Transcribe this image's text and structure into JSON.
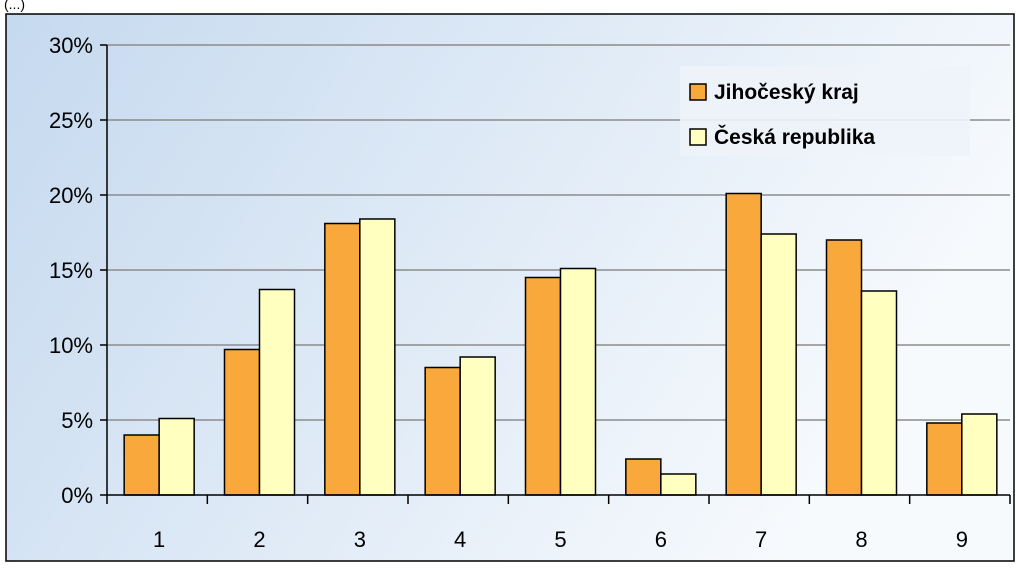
{
  "header_fragment": "(...)",
  "chart_data": {
    "type": "bar",
    "categories": [
      "1",
      "2",
      "3",
      "4",
      "5",
      "6",
      "7",
      "8",
      "9"
    ],
    "series": [
      {
        "name": "Jihočeský kraj",
        "color": "#f9a93c",
        "values": [
          4.0,
          9.7,
          18.1,
          8.5,
          14.5,
          2.4,
          20.1,
          17.0,
          4.8
        ]
      },
      {
        "name": "Česká republika",
        "color": "#ffffc0",
        "values": [
          5.1,
          13.7,
          18.4,
          9.2,
          15.1,
          1.4,
          17.4,
          13.6,
          5.4
        ]
      }
    ],
    "ylim": [
      0,
      30
    ],
    "yticks": [
      0,
      5,
      10,
      15,
      20,
      25,
      30
    ],
    "ytick_labels": [
      "0%",
      "5%",
      "10%",
      "15%",
      "20%",
      "25%",
      "30%"
    ],
    "grid": true,
    "legend_position": "top-right",
    "xlabel": "",
    "ylabel": "",
    "title": "",
    "colors": {
      "plot_background_left": "#c5d9ef",
      "plot_background_right": "#f7fafd",
      "gridline": "#8c8c8c",
      "bar_stroke": "#000000",
      "frame": "#000000"
    }
  }
}
